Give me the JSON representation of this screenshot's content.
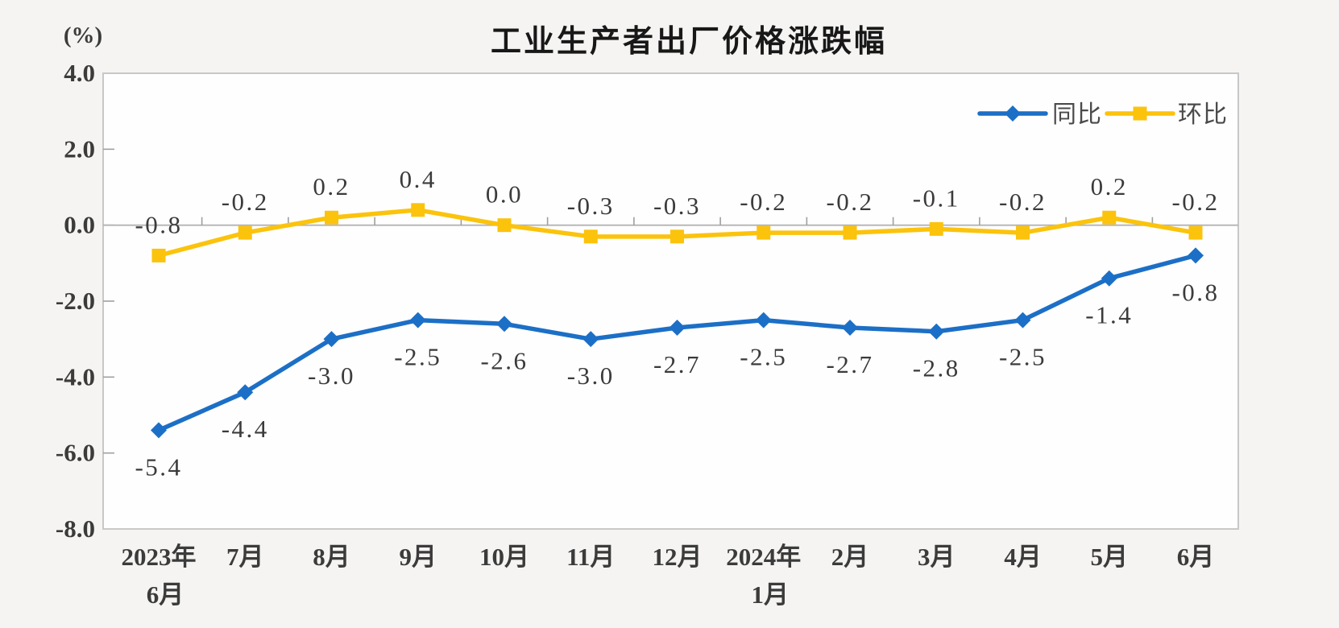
{
  "chart_data": {
    "type": "line",
    "title": "工业生产者出厂价格涨跌幅",
    "unit_label": "(%)",
    "categories": [
      "2023年|6月",
      "7月",
      "8月",
      "9月",
      "10月",
      "11月",
      "12月",
      "2024年|1月",
      "2月",
      "3月",
      "4月",
      "5月",
      "6月"
    ],
    "series": [
      {
        "name": "同比",
        "color": "#1c6fc6",
        "marker": "diamond",
        "label_position": "below",
        "values": [
          -5.4,
          -4.4,
          -3.0,
          -2.5,
          -2.6,
          -3.0,
          -2.7,
          -2.5,
          -2.7,
          -2.8,
          -2.5,
          -1.4,
          -0.8
        ]
      },
      {
        "name": "环比",
        "color": "#fbc30c",
        "marker": "square",
        "label_position": "above",
        "values": [
          -0.8,
          -0.2,
          0.2,
          0.4,
          0.0,
          -0.3,
          -0.3,
          -0.2,
          -0.2,
          -0.1,
          -0.2,
          0.2,
          -0.2
        ]
      }
    ],
    "y_axis": {
      "min": -8.0,
      "max": 4.0,
      "step": 2.0,
      "tick_labels": [
        "4.0",
        "2.0",
        "0.0",
        "-2.0",
        "-4.0",
        "-6.0",
        "-8.0"
      ]
    },
    "legend_position": "top-right-inside",
    "grid": false,
    "colors": {
      "plot_background": "#fefefe",
      "page_background": "#f5f4f2",
      "plot_border": "#c8c8c8",
      "zero_line": "#b3b3b3",
      "tick": "#9f9f9f",
      "text": "#3b3b3b"
    }
  }
}
